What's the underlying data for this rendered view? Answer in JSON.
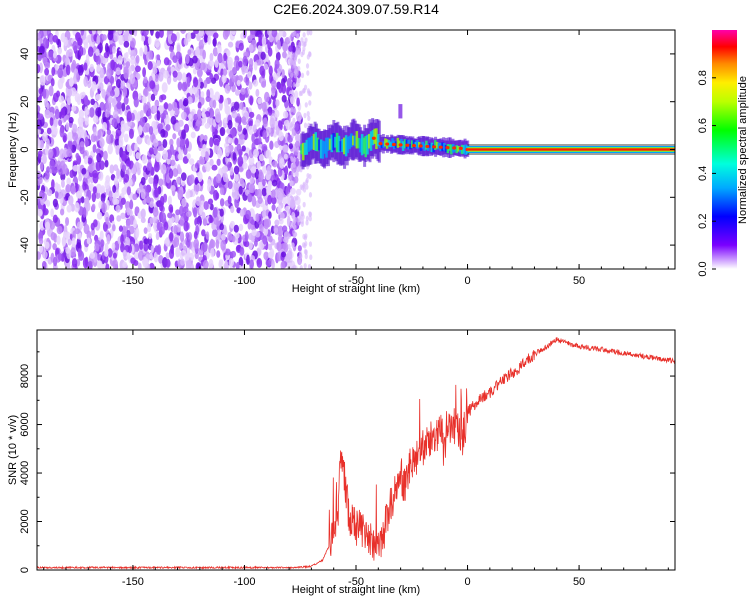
{
  "title": "C2E6.2024.309.07.59.R14",
  "colors": {
    "dots": "#6a0fe0",
    "line": "#e8302a",
    "band_core": "#e8302a"
  },
  "chart_data": [
    {
      "type": "heatmap",
      "xlabel": "Height of straight line (km)",
      "ylabel": "Frequency (Hz)",
      "xlim": [
        -193,
        93
      ],
      "ylim": [
        -50,
        50
      ],
      "xticks": [
        -150,
        -100,
        -50,
        0,
        50
      ],
      "yticks": [
        -40,
        -20,
        0,
        20,
        40
      ],
      "colorbar": {
        "label": "Normalized spectral amplitude",
        "range": [
          0,
          1
        ],
        "ticks": [
          "0.0",
          "0.2",
          "0.4",
          "0.6",
          "0.8"
        ],
        "tick_values": [
          0,
          0.2,
          0.4,
          0.6,
          0.8
        ]
      },
      "regions": [
        {
          "name": "noise",
          "x": [
            -193,
            -75
          ],
          "freq": [
            -50,
            50
          ],
          "amplitude": 0.1
        },
        {
          "name": "broad band",
          "x": [
            -75,
            -40
          ],
          "freq": [
            -5,
            9
          ],
          "amplitude": 0.35
        },
        {
          "name": "narrowing band",
          "x": [
            -40,
            0
          ],
          "freq": [
            -2,
            3
          ],
          "amplitude": 0.5
        },
        {
          "name": "carrier",
          "x": [
            0,
            93
          ],
          "freq": [
            0,
            0
          ],
          "amplitude": 0.95
        }
      ],
      "grid": false
    },
    {
      "type": "line",
      "xlabel": "Height of straight line (km)",
      "ylabel": "SNR (10 * v/v)",
      "xlim": [
        -193,
        93
      ],
      "ylim": [
        0,
        9900
      ],
      "xticks": [
        -150,
        -100,
        -50,
        0,
        50
      ],
      "yticks": [
        0,
        2000,
        4000,
        6000,
        8000
      ],
      "series": [
        {
          "x": [
            -193,
            -150,
            -100,
            -76,
            -70,
            -65,
            -61,
            -58,
            -57,
            -55,
            -53,
            -50,
            -45,
            -42,
            -38,
            -35,
            -31,
            -28,
            -25,
            -22,
            -18,
            -14,
            -10,
            -6,
            -2,
            0,
            5,
            10,
            15,
            20,
            25,
            30,
            35,
            40,
            45,
            50,
            60,
            70,
            80,
            93
          ],
          "y": [
            100,
            100,
            100,
            100,
            150,
            400,
            1200,
            2600,
            5000,
            3600,
            2200,
            1800,
            1500,
            900,
            1400,
            2500,
            3800,
            3500,
            4500,
            4800,
            5300,
            5600,
            5400,
            6000,
            5500,
            6500,
            7000,
            7300,
            7800,
            8100,
            8500,
            8900,
            9200,
            9500,
            9350,
            9200,
            9100,
            8950,
            8800,
            8600
          ],
          "color": "#e8302a"
        }
      ],
      "grid": false
    }
  ]
}
